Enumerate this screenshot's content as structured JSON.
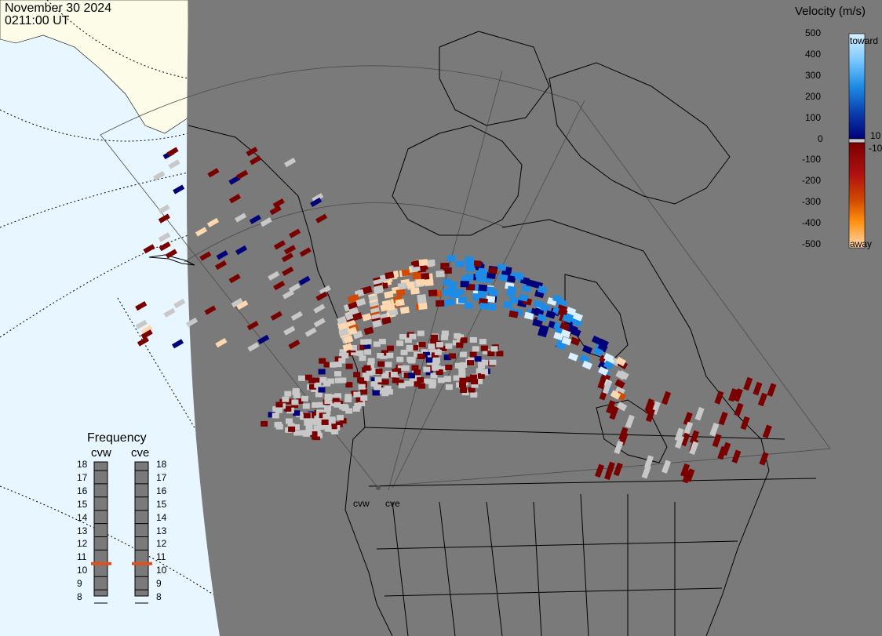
{
  "header": {
    "date": "November 30 2024",
    "time": "0211:00 UT"
  },
  "velocity_scale": {
    "title": "Velocity (m/s)",
    "ticks": [
      "500",
      "400",
      "300",
      "200",
      "100",
      "10",
      "0",
      "-10",
      "-100",
      "-200",
      "-300",
      "-400",
      "-500"
    ],
    "toward_label": "toward",
    "away_label": "away",
    "colors": {
      "toward_high": "#d8f0ff",
      "toward_mid": "#1e8ce6",
      "toward_low": "#00007a",
      "ground": "#c8c8c8",
      "away_low": "#7a0000",
      "away_mid": "#d24a00",
      "away_high": "#ffd8b0"
    }
  },
  "frequency_panel": {
    "title": "Frequency",
    "radars": [
      {
        "code": "cvw",
        "frequency_mhz": 11
      },
      {
        "code": "cve",
        "frequency_mhz": 11
      }
    ],
    "scale_labels": [
      "18",
      "17",
      "16",
      "15",
      "14",
      "13",
      "12",
      "11",
      "10",
      "9",
      "8"
    ],
    "marker_color": "#e05020"
  },
  "map": {
    "ocean_color": "#e8f6ff",
    "land_outside_color": "#fcfce8",
    "night_color": "#7a7a7a",
    "site_labels": [
      "cvw",
      "cve"
    ]
  }
}
